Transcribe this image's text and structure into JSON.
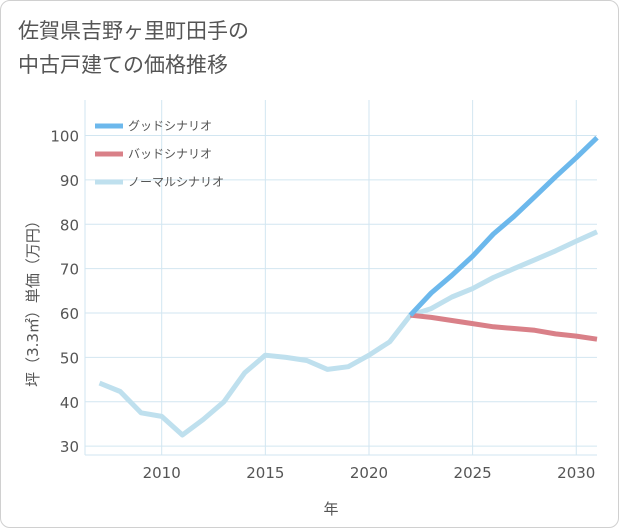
{
  "title_lines": [
    "佐賀県吉野ヶ里町田手の",
    "中古戸建ての価格推移"
  ],
  "chart_data": {
    "type": "line",
    "title": "佐賀県吉野ヶ里町田手の中古戸建ての価格推移",
    "xlabel": "年",
    "ylabel": "坪（3.3㎡）単価（万円）",
    "xlim": [
      2006.3,
      2031
    ],
    "ylim": [
      28,
      108
    ],
    "xticks": [
      2010,
      2015,
      2020,
      2025,
      2030
    ],
    "yticks": [
      30,
      40,
      50,
      60,
      70,
      80,
      90,
      100
    ],
    "grid": true,
    "legend_position": "top-left",
    "series": [
      {
        "name": "グッドシナリオ",
        "color": "#6cb8ec",
        "x": [
          2022,
          2023,
          2024,
          2025,
          2026,
          2027,
          2028,
          2029,
          2030,
          2031
        ],
        "y": [
          59.5,
          64.5,
          68.5,
          72.8,
          77.8,
          81.8,
          86.2,
          90.7,
          95.0,
          99.5
        ]
      },
      {
        "name": "バッドシナリオ",
        "color": "#d98088",
        "x": [
          2022,
          2023,
          2024,
          2025,
          2026,
          2027,
          2028,
          2029,
          2030,
          2031
        ],
        "y": [
          59.5,
          59.0,
          58.3,
          57.6,
          56.9,
          56.5,
          56.1,
          55.3,
          54.8,
          54.1
        ]
      },
      {
        "name": "ノーマルシナリオ",
        "color": "#bfe0ee",
        "x": [
          2007,
          2008,
          2009,
          2010,
          2011,
          2012,
          2013,
          2014,
          2015,
          2016,
          2017,
          2018,
          2019,
          2020,
          2021,
          2022,
          2023,
          2024,
          2025,
          2026,
          2027,
          2028,
          2029,
          2030,
          2031
        ],
        "y": [
          44.2,
          42.3,
          37.5,
          36.7,
          32.5,
          36.0,
          40.0,
          46.5,
          50.5,
          50.0,
          49.3,
          47.3,
          47.9,
          50.5,
          53.5,
          59.5,
          61.0,
          63.6,
          65.5,
          68.0,
          70.0,
          72.0,
          74.0,
          76.2,
          78.3
        ]
      }
    ]
  }
}
